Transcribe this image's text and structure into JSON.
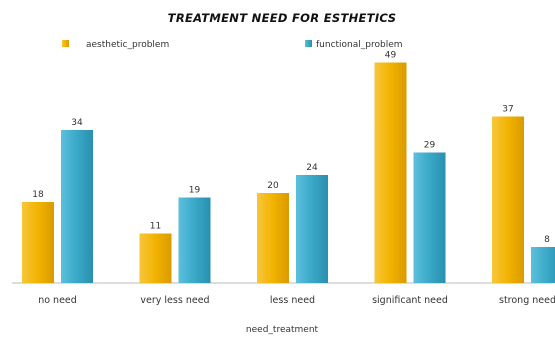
{
  "chart_data": {
    "type": "bar",
    "title": "TREATMENT NEED FOR ESTHETICS",
    "xlabel": "need_treatment",
    "ylabel": "",
    "categories": [
      "no need",
      "very less need",
      "less need",
      "significant need",
      "strong need"
    ],
    "series": [
      {
        "name": "aesthetic_problem",
        "values": [
          18,
          11,
          20,
          49,
          37
        ],
        "color": "#F2B300"
      },
      {
        "name": "functional_problem",
        "values": [
          34,
          19,
          24,
          29,
          8
        ],
        "color": "#3AA8C8"
      }
    ],
    "ylim": [
      0,
      50
    ],
    "grid": false,
    "legend": "top"
  }
}
